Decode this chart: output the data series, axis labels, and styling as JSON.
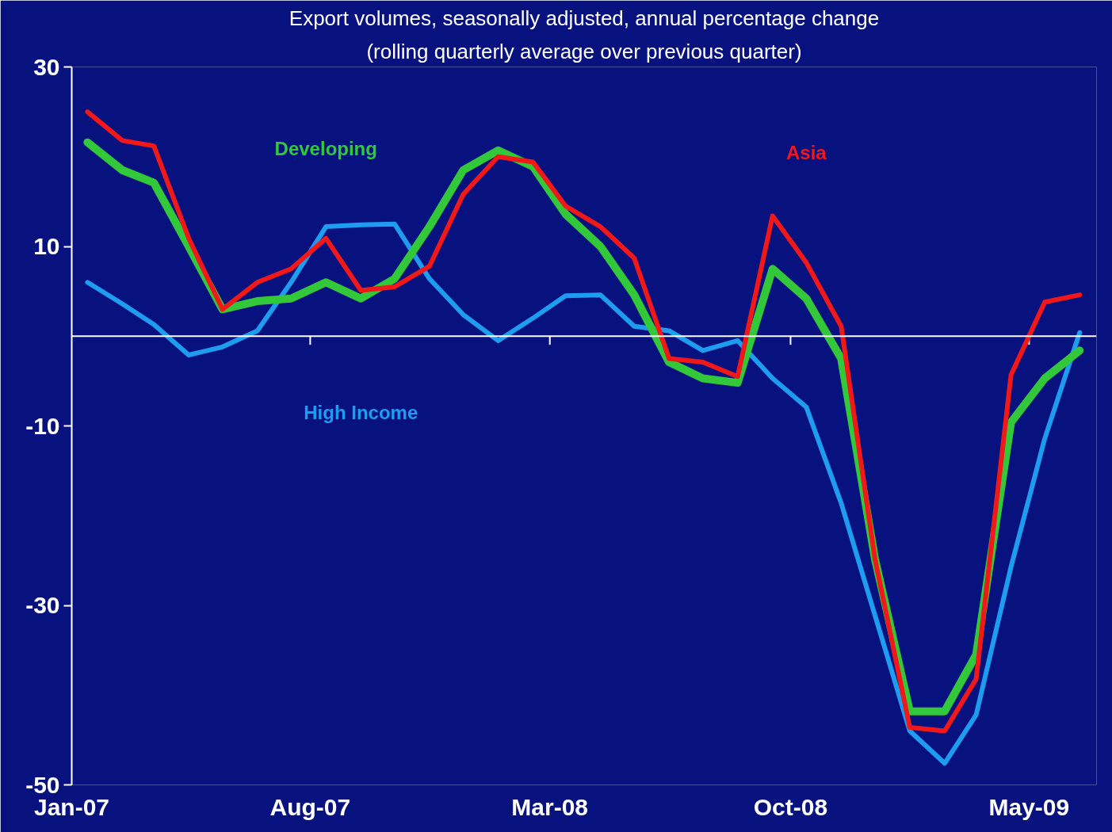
{
  "chart_data": {
    "type": "line",
    "title": "Export volumes, seasonally adjusted, annual percentage change",
    "subtitle": "(rolling quarterly average over previous quarter)",
    "x": [
      "2007-01-15",
      "2007-02-15",
      "2007-03-15",
      "2007-04-15",
      "2007-05-15",
      "2007-06-15",
      "2007-07-15",
      "2007-08-15",
      "2007-09-15",
      "2007-10-15",
      "2007-11-15",
      "2007-12-15",
      "2008-01-15",
      "2008-02-15",
      "2008-03-15",
      "2008-04-15",
      "2008-05-15",
      "2008-06-15",
      "2008-07-15",
      "2008-08-15",
      "2008-09-15",
      "2008-10-15",
      "2008-11-15",
      "2008-12-15",
      "2009-01-15",
      "2009-02-15",
      "2009-03-15",
      "2009-04-15",
      "2009-05-15",
      "2009-06-15"
    ],
    "series": [
      {
        "name": "High Income",
        "color": "#1e9cf0",
        "values": [
          6.0,
          3.6,
          1.3,
          -2.1,
          -1.2,
          0.6,
          6.0,
          12.2,
          12.4,
          12.5,
          6.4,
          2.4,
          -0.5,
          2.0,
          4.5,
          4.6,
          1.1,
          0.6,
          -1.6,
          -0.5,
          -4.7,
          -7.9,
          -18.6,
          -31.1,
          -44.0,
          -47.6,
          -42.2,
          -25.7,
          -11.4,
          0.4
        ]
      },
      {
        "name": "Developing",
        "color": "#33c83a",
        "values": [
          21.6,
          18.5,
          17.1,
          10.0,
          3.0,
          3.9,
          4.2,
          6.0,
          4.2,
          6.4,
          12.2,
          18.5,
          20.7,
          18.9,
          13.6,
          10.0,
          4.6,
          -2.9,
          -4.7,
          -5.2,
          7.5,
          4.2,
          -2.5,
          -24.8,
          -41.8,
          -41.8,
          -35.5,
          -9.6,
          -4.7,
          -1.6
        ]
      },
      {
        "name": "Asia",
        "color": "#f01818",
        "values": [
          25.0,
          21.8,
          21.2,
          10.9,
          3.0,
          6.0,
          7.5,
          10.9,
          5.1,
          5.5,
          7.8,
          15.8,
          20.0,
          19.4,
          14.5,
          12.2,
          8.7,
          -2.5,
          -2.9,
          -4.5,
          13.4,
          8.2,
          1.1,
          -24.8,
          -43.6,
          -44.0,
          -38.2,
          -4.3,
          3.8,
          4.6
        ]
      }
    ],
    "xlim": [
      "2007-01-01",
      "2009-06-30"
    ],
    "xticks": [
      {
        "value": "2007-01-01",
        "label": "Jan-07"
      },
      {
        "value": "2007-08-01",
        "label": "Aug-07"
      },
      {
        "value": "2008-03-01",
        "label": "Mar-08"
      },
      {
        "value": "2008-10-01",
        "label": "Oct-08"
      },
      {
        "value": "2009-05-01",
        "label": "May-09"
      }
    ],
    "ylim": [
      -50,
      30
    ],
    "yticks": [
      30,
      10,
      -10,
      -30,
      -50
    ],
    "ref_lines": [
      {
        "axis": "y",
        "value": 0,
        "color": "#ffffff"
      }
    ],
    "grid": false,
    "legend": false,
    "marker": "none",
    "line_style": "solid"
  }
}
